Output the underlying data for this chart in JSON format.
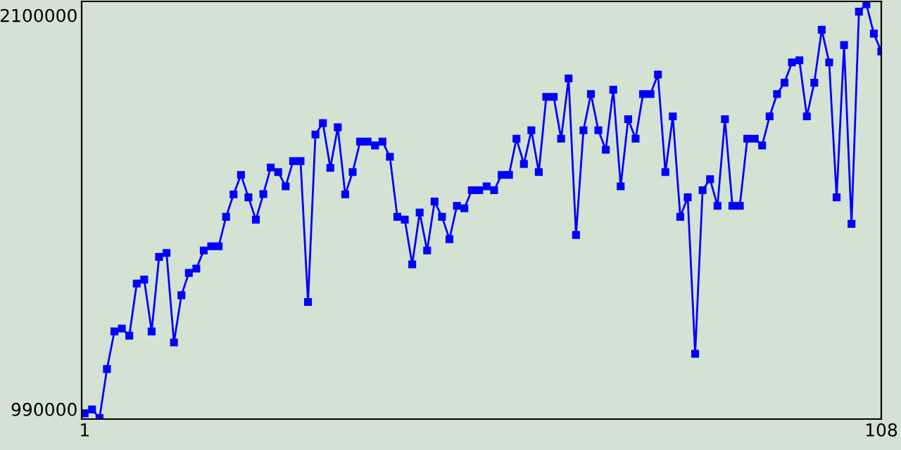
{
  "chart_data": {
    "type": "line",
    "xlim": [
      0.6,
      108
    ],
    "xticks": [
      1,
      108
    ],
    "ylim": [
      962000,
      2139000
    ],
    "yticks": [
      990000,
      2100000
    ],
    "grid": false,
    "marker": "square",
    "line_style": "solid",
    "x": [
      1,
      2,
      3,
      4,
      5,
      6,
      7,
      8,
      9,
      10,
      11,
      12,
      13,
      14,
      15,
      16,
      17,
      18,
      19,
      20,
      21,
      22,
      23,
      24,
      25,
      26,
      27,
      28,
      29,
      30,
      31,
      32,
      33,
      34,
      35,
      36,
      37,
      38,
      39,
      40,
      41,
      42,
      43,
      44,
      45,
      46,
      47,
      48,
      49,
      50,
      51,
      52,
      53,
      54,
      55,
      56,
      57,
      58,
      59,
      60,
      61,
      62,
      63,
      64,
      65,
      66,
      67,
      68,
      69,
      70,
      71,
      72,
      73,
      74,
      75,
      76,
      77,
      78,
      79,
      80,
      81,
      82,
      83,
      84,
      85,
      86,
      87,
      88,
      89,
      90,
      91,
      92,
      93,
      94,
      95,
      96,
      97,
      98,
      99,
      100,
      101,
      102,
      103,
      104,
      105,
      106,
      107,
      108
    ],
    "series": [
      {
        "color": "#0000ff",
        "values": [
          978000,
          989000,
          965000,
          1103000,
          1209000,
          1217000,
          1197000,
          1344000,
          1355000,
          1209000,
          1419000,
          1430000,
          1178000,
          1311000,
          1374000,
          1386000,
          1437000,
          1449000,
          1449000,
          1532000,
          1595000,
          1650000,
          1587000,
          1524000,
          1596000,
          1671000,
          1658000,
          1618000,
          1689000,
          1689000,
          1292000,
          1764000,
          1796000,
          1670000,
          1784000,
          1595000,
          1658000,
          1744000,
          1744000,
          1733000,
          1744000,
          1701000,
          1532000,
          1524000,
          1398000,
          1544000,
          1437000,
          1575000,
          1532000,
          1469000,
          1563000,
          1556000,
          1607000,
          1607000,
          1618000,
          1607000,
          1650000,
          1650000,
          1752000,
          1681000,
          1776000,
          1658000,
          1870000,
          1870000,
          1752000,
          1922000,
          1481000,
          1776000,
          1878000,
          1776000,
          1721000,
          1890000,
          1618000,
          1807000,
          1752000,
          1878000,
          1878000,
          1933000,
          1658000,
          1815000,
          1532000,
          1587000,
          1146000,
          1607000,
          1638000,
          1563000,
          1807000,
          1563000,
          1563000,
          1752000,
          1752000,
          1733000,
          1815000,
          1878000,
          1910000,
          1967000,
          1973000,
          1815000,
          1910000,
          2059000,
          1967000,
          1587000,
          2016000,
          1512000,
          2110000,
          2131000,
          2048000,
          1998000
        ]
      }
    ]
  }
}
